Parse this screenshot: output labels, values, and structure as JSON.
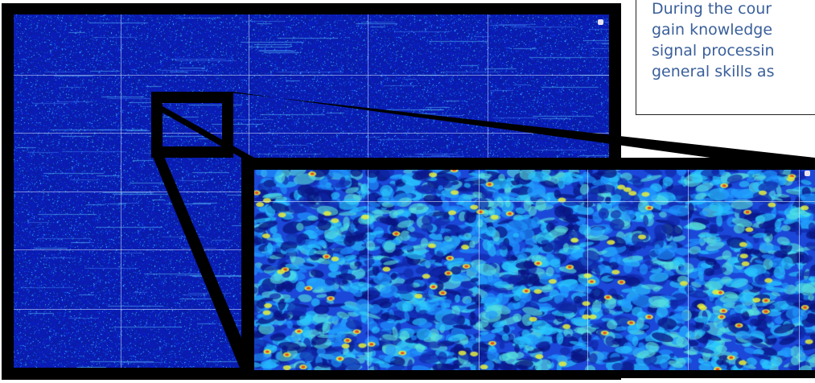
{
  "textbox": {
    "lines": [
      "During the cour",
      "gain knowledge",
      "signal processin",
      "general skills as"
    ]
  },
  "colors": {
    "spectrogram_bg": "#0d21a8",
    "frame": "#000000",
    "text": "#3a5f9a"
  },
  "icons": {
    "corner_marker": "square-dot-icon"
  }
}
